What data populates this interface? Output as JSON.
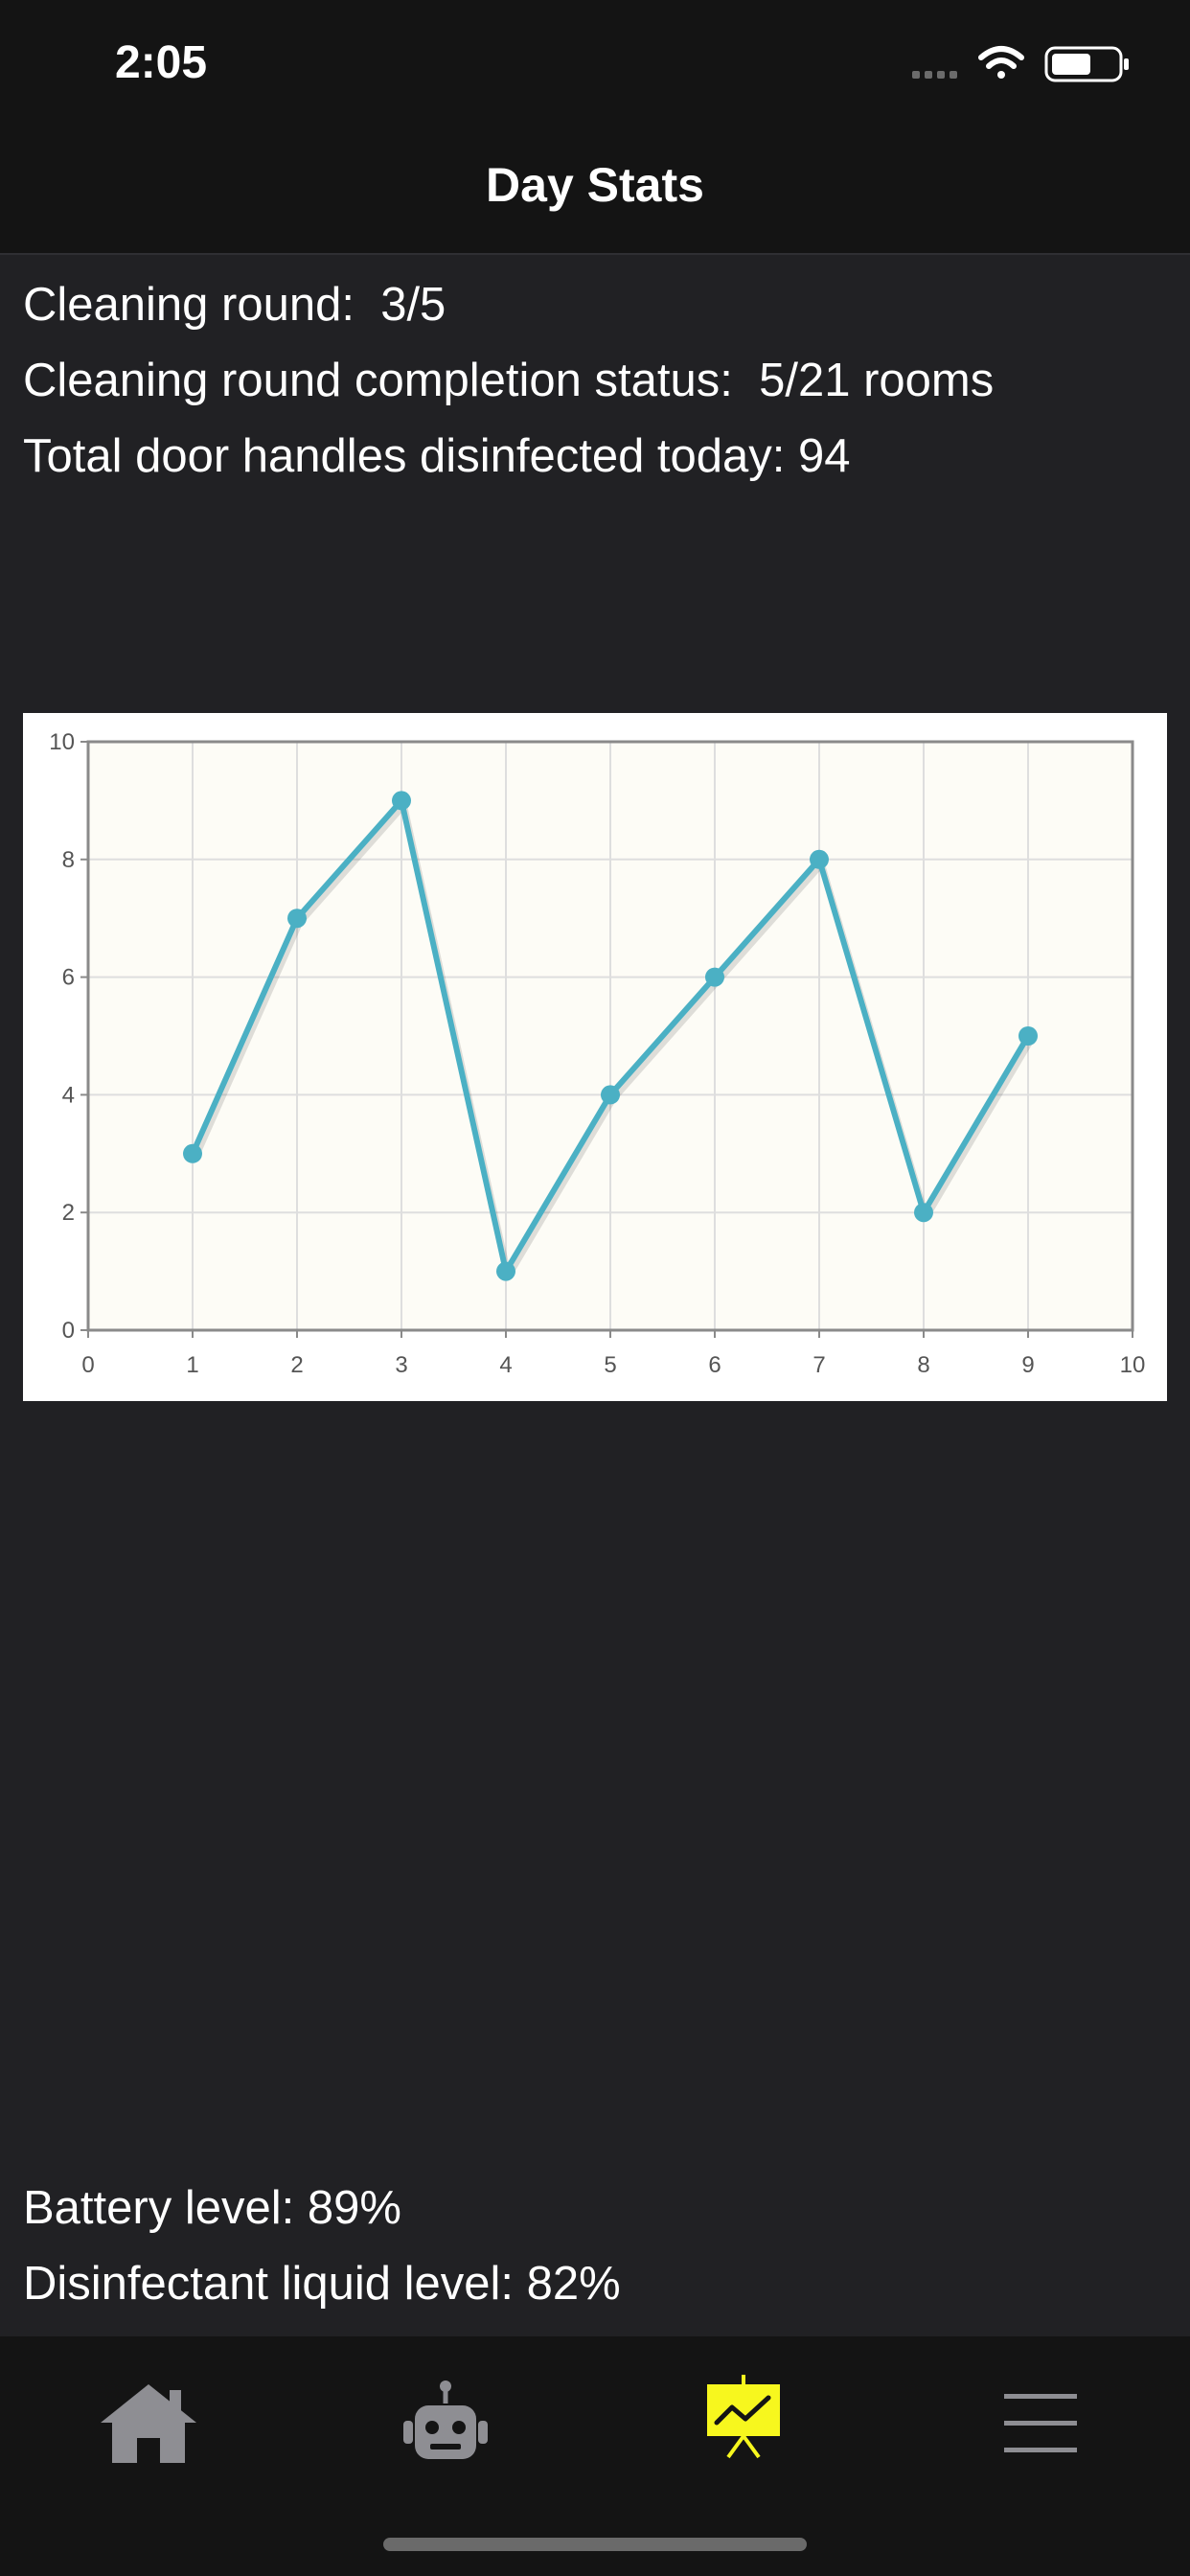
{
  "status_bar": {
    "time": "2:05"
  },
  "header": {
    "title": "Day Stats"
  },
  "stats": {
    "cleaning_round": "Cleaning round:  3/5",
    "completion_status": "Cleaning round completion status:  5/21 rooms",
    "door_handles": "Total door handles disinfected today: 94"
  },
  "chart_data": {
    "type": "line",
    "x": [
      1,
      2,
      3,
      4,
      5,
      6,
      7,
      8,
      9
    ],
    "series": [
      {
        "values": [
          3,
          7,
          9,
          1,
          4,
          6,
          8,
          2,
          5
        ]
      }
    ],
    "xlim": [
      0,
      10
    ],
    "ylim": [
      0,
      10
    ],
    "x_ticks": [
      "0",
      "1",
      "2",
      "3",
      "4",
      "5",
      "6",
      "7",
      "8",
      "9",
      "10"
    ],
    "y_ticks": [
      "0",
      "2",
      "4",
      "6",
      "8",
      "10"
    ],
    "grid": true,
    "title": "",
    "xlabel": "",
    "ylabel": "",
    "line_color": "#4bb0c4",
    "plot_background": "#fdfcf6"
  },
  "levels": {
    "battery": "Battery level: 89%",
    "disinfectant": "Disinfectant liquid level: 82%"
  },
  "tab_bar": {
    "tabs": [
      {
        "icon": "home-icon",
        "active": false
      },
      {
        "icon": "robot-icon",
        "active": false
      },
      {
        "icon": "chart-presentation-icon",
        "active": true
      },
      {
        "icon": "menu-icon",
        "active": false
      }
    ],
    "active_color": "#f7f71e",
    "inactive_color": "#8e8e93"
  }
}
